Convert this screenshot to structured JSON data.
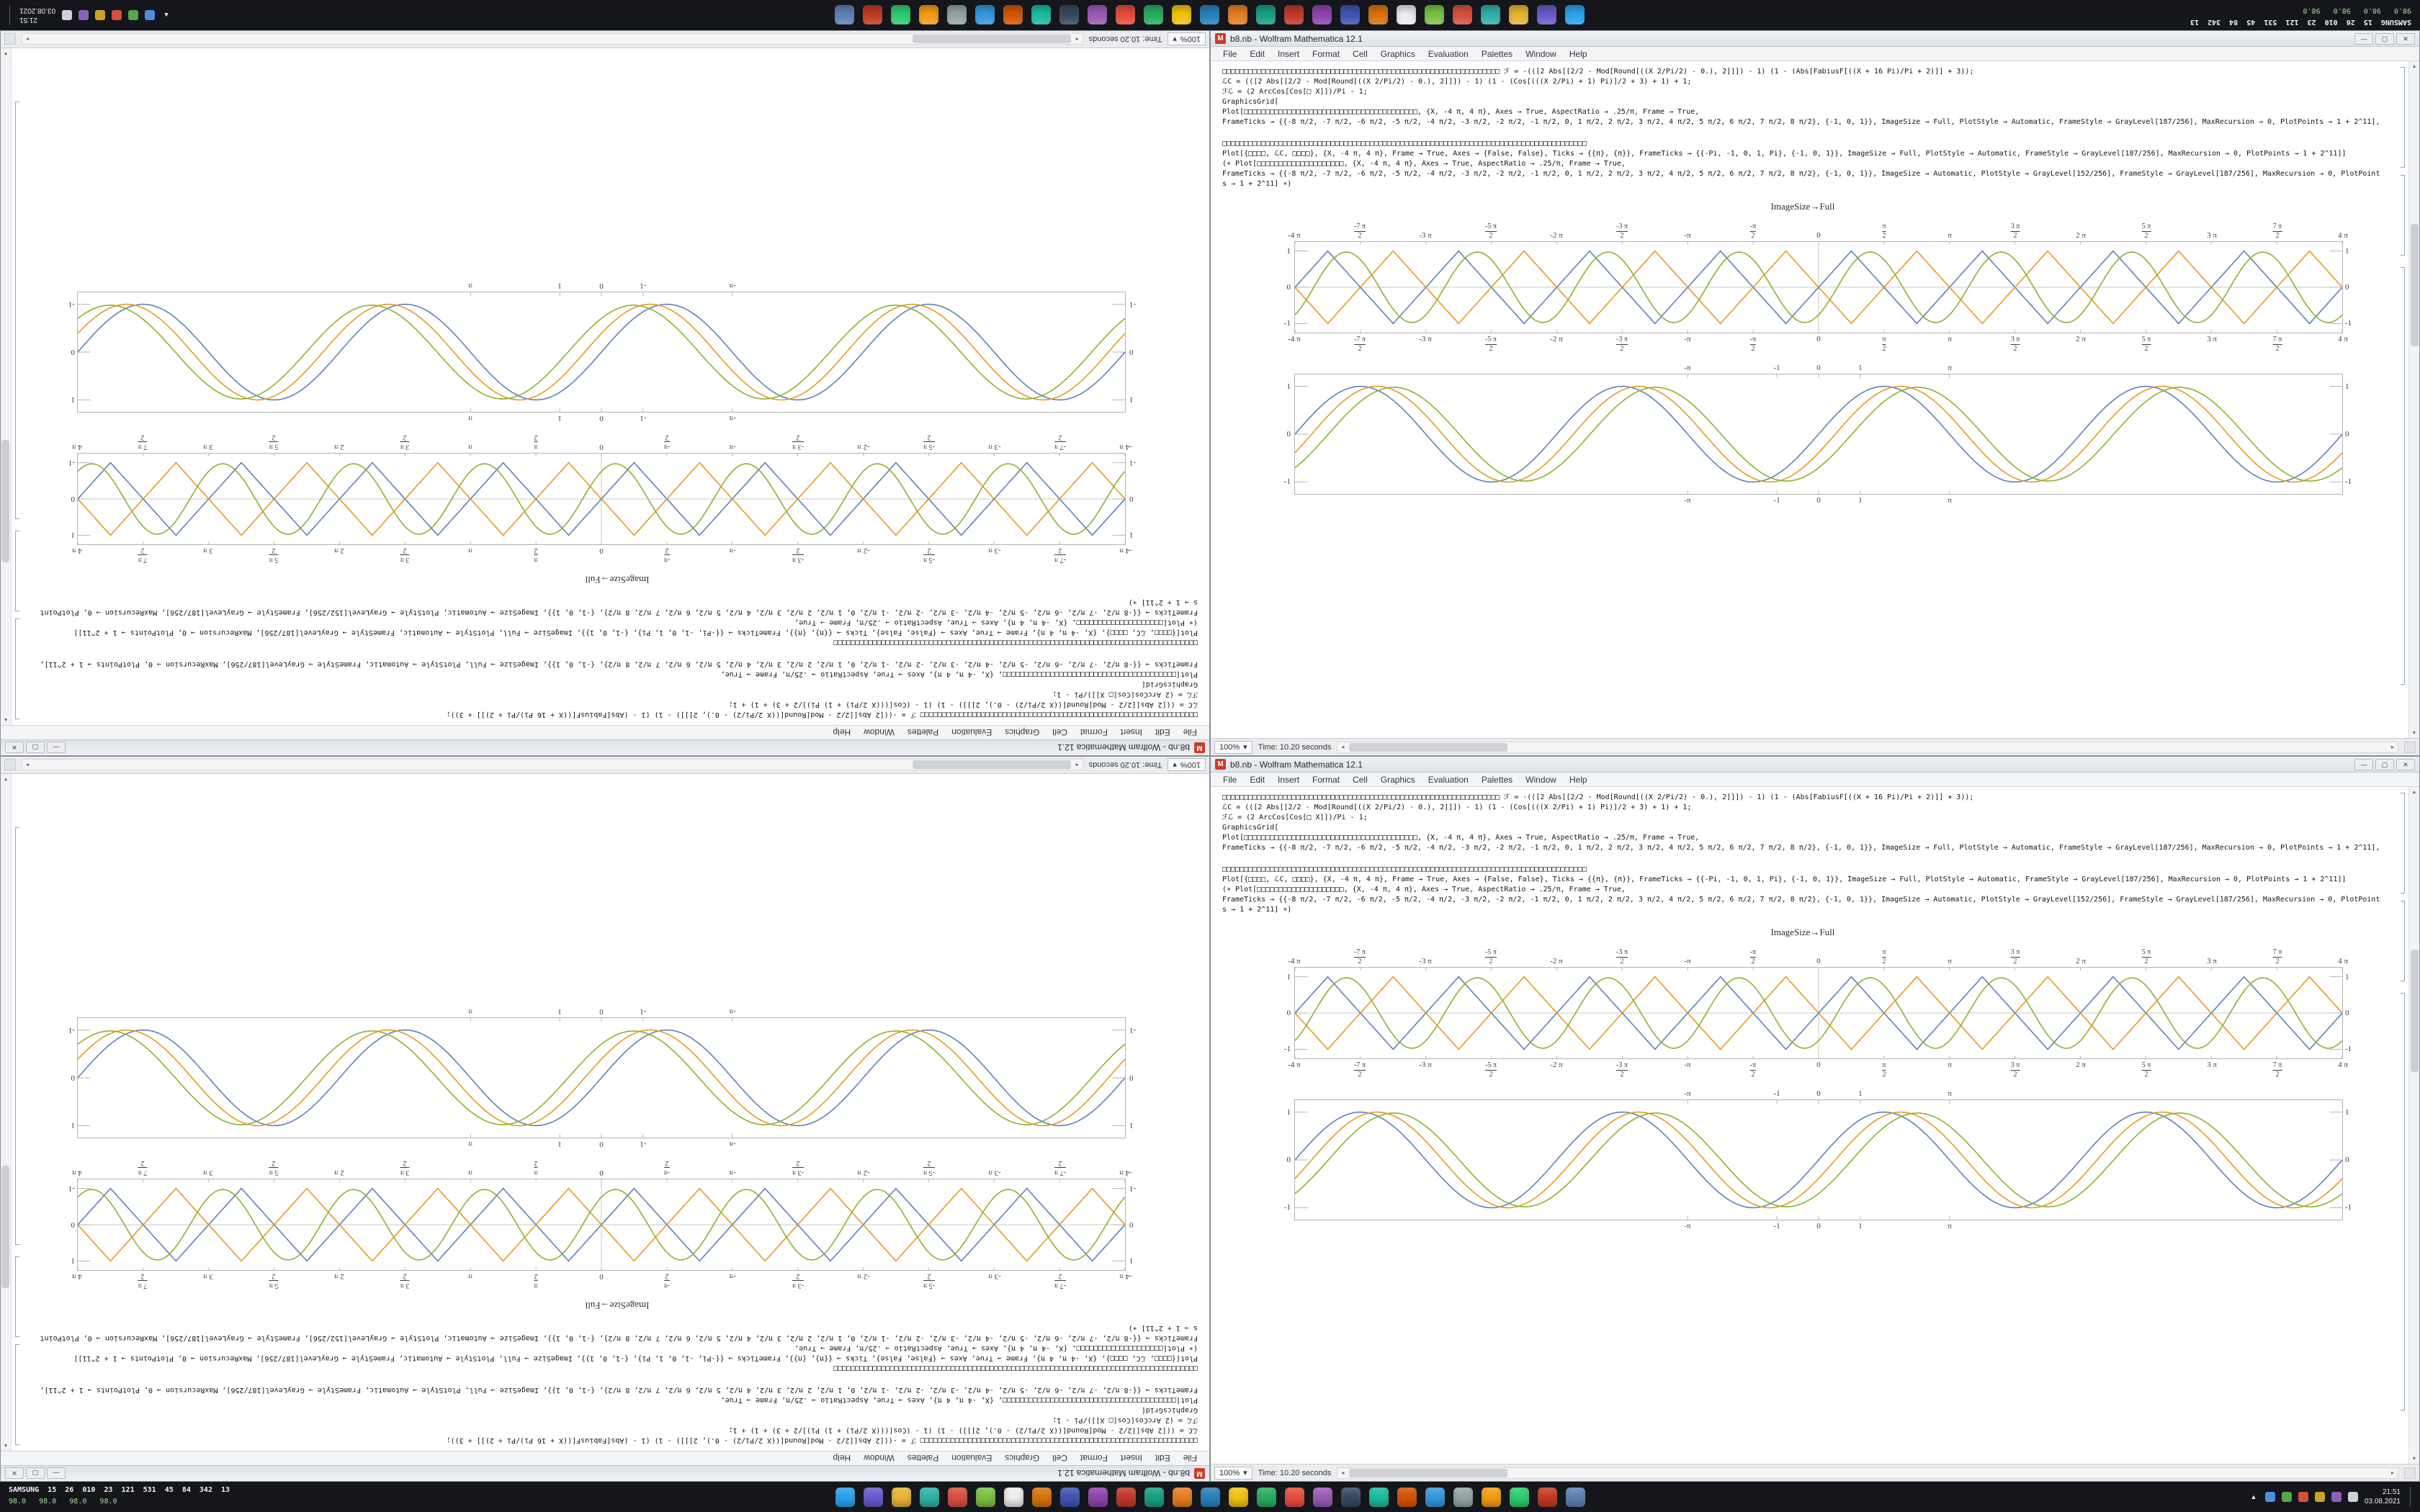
{
  "meta": {
    "status_time": "Time: 10.20 seconds",
    "zoom": "100%",
    "zoom_caret": "▾"
  },
  "window": {
    "icon_label": "M",
    "title": "b8.nb - Wolfram Mathematica 12.1",
    "controls": {
      "minimize": "—",
      "maximize": "▢",
      "close": "✕"
    },
    "menus": [
      "File",
      "Edit",
      "Insert",
      "Format",
      "Cell",
      "Graphics",
      "Evaluation",
      "Palettes",
      "Window",
      "Help"
    ],
    "code_cell_1": [
      "□□□□□□□□□□□□□□□□□□□□□□□□□□□□□□□□□□□□□□□□□□□□□□□□□□□□□□□□□□□□□□□□ ℱ = -(([2 Abs[[2/2 - Mod[Round[((X 2/Pi/2) - 0.), 2]]]) - 1) (1 - (Abs[FabiusF[((X + 16 Pi)/Pi + 2)]] + 3));",
      "ℒC = (([2 Abs[[2/2 - Mod[Round[((X 2/Pi/2) - 0.), 2]]]) - 1) (1 - (Cos[(((X 2/Pi) + 1) Pi)]/2 + 3) + 1) + 1;",
      "ℱℒ = (2 ArcCos[Cos[□ X]])/Pi - 1;",
      "GraphicsGrid[",
      "Plot[□□□□□□□□□□□□□□□□□□□□□□□□□□□□□□□□□□□□□□□□, {X, -4 π, 4 π}, Axes → True, AspectRatio → .25/π, Frame → True,",
      "FrameTicks → {{-8 π/2, -7 π/2, -6 π/2, -5 π/2, -4 π/2, -3 π/2, -2 π/2, -1 π/2, 0, 1 π/2, 2 π/2, 3 π/2, 4 π/2, 5 π/2, 6 π/2, 7 π/2, 8 π/2}, {-1, 0, 1}}, ImageSize → Full, PlotStyle → Automatic, FrameStyle → GrayLevel[187/256], MaxRecursion → 0, PlotPoints → 1 + 2^11],"
    ],
    "code_cell_2": [
      "□□□□□□□□□□□□□□□□□□□□□□□□□□□□□□□□□□□□□□□□□□□□□□□□□□□□□□□□□□□□□□□□□□□□□□□□□□□□□□□□□□□□",
      "Plot[{□□□□, ℒC, □□□□}, {X, -4 π, 4 π}, Frame → True, Axes → {False, False}, Ticks → {{π}, {π}}, FrameTicks → {{-Pi, -1, 0, 1, Pi}, {-1, 0, 1}}, ImageSize → Full, PlotStyle → Automatic, FrameStyle → GrayLevel[187/256], MaxRecursion → 0, PlotPoints → 1 + 2^11]]",
      "(∗ Plot[□□□□□□□□□□□□□□□□□□□□, {X, -4 π, 4 π}, Axes → True, AspectRatio → .25/π, Frame → True,",
      "FrameTicks → {{-8 π/2, -7 π/2, -6 π/2, -5 π/2, -4 π/2, -3 π/2, -2 π/2, -1 π/2, 0, 1 π/2, 2 π/2, 3 π/2, 4 π/2, 5 π/2, 6 π/2, 7 π/2, 8 π/2}, {-1, 0, 1}}, ImageSize → Automatic, PlotStyle → GrayLevel[152/256], FrameStyle → GrayLevel[187/256], MaxRecursion → 0, PlotPoints → 1 + 2^11] ∗)"
    ],
    "output_label": "ImageSize→Full"
  },
  "chart_data": [
    {
      "type": "line",
      "title": "",
      "xlabel": "",
      "ylabel": "",
      "x_range": [
        -12.566,
        12.566
      ],
      "y_range": [
        -1.25,
        1.25
      ],
      "frame": true,
      "axes": true,
      "grid": false,
      "legend": "none",
      "x_ticks": [
        {
          "v": -12.566,
          "l": "-4 π"
        },
        {
          "v": -10.996,
          "n": "-7 π",
          "d": "2"
        },
        {
          "v": -9.4248,
          "l": "-3 π"
        },
        {
          "v": -7.854,
          "n": "-5 π",
          "d": "2"
        },
        {
          "v": -6.2832,
          "l": "-2 π"
        },
        {
          "v": -4.7124,
          "n": "-3 π",
          "d": "2"
        },
        {
          "v": -3.1416,
          "l": "-π"
        },
        {
          "v": -1.5708,
          "n": "-π",
          "d": "2"
        },
        {
          "v": 0,
          "l": "0"
        },
        {
          "v": 1.5708,
          "n": "π",
          "d": "2"
        },
        {
          "v": 3.1416,
          "l": "π"
        },
        {
          "v": 4.7124,
          "n": "3 π",
          "d": "2"
        },
        {
          "v": 6.2832,
          "l": "2 π"
        },
        {
          "v": 7.854,
          "n": "5 π",
          "d": "2"
        },
        {
          "v": 9.4248,
          "l": "3 π"
        },
        {
          "v": 10.996,
          "n": "7 π",
          "d": "2"
        },
        {
          "v": 12.566,
          "l": "4 π"
        }
      ],
      "y_ticks": [
        -1,
        0,
        1
      ],
      "series": [
        {
          "name": "triangle-wave-1",
          "fn": "tri",
          "period": 3.1416,
          "phase": 0,
          "amp": 1,
          "color": "#5e81b5"
        },
        {
          "name": "triangle-wave-2",
          "fn": "tri",
          "period": 3.1416,
          "phase": 1.5708,
          "amp": 1,
          "color": "#e19c24"
        },
        {
          "name": "sine-wave",
          "fn": "sin",
          "period": 3.1416,
          "phase": 0.45,
          "amp": 0.97,
          "color": "#8fb032"
        }
      ]
    },
    {
      "type": "line",
      "title": "",
      "xlabel": "",
      "ylabel": "",
      "x_range": [
        -12.566,
        12.566
      ],
      "y_range": [
        -1.25,
        1.25
      ],
      "frame": true,
      "axes": false,
      "grid": false,
      "legend": "none",
      "x_ticks": [
        {
          "v": -3.1416,
          "l": "-π"
        },
        {
          "v": -1,
          "l": "-1"
        },
        {
          "v": 0,
          "l": "0"
        },
        {
          "v": 1,
          "l": "1"
        },
        {
          "v": 3.1416,
          "l": "π"
        }
      ],
      "y_ticks": [
        -1,
        0,
        1
      ],
      "series": [
        {
          "name": "sine-1",
          "fn": "sin",
          "period": 6.2832,
          "phase": 0,
          "amp": 1,
          "color": "#5e81b5"
        },
        {
          "name": "sine-2",
          "fn": "sin",
          "period": 6.2832,
          "phase": 0.4,
          "amp": 1,
          "color": "#e19c24"
        },
        {
          "name": "sine-3",
          "fn": "sin",
          "period": 6.2832,
          "phase": 0.8,
          "amp": 0.98,
          "color": "#8fb032"
        }
      ]
    }
  ],
  "taskbar": {
    "stats_line_1": "SAMSUNG  15  26  010  23  121  531  45  84  342  13",
    "stats_line_2": "98.0   98.0   98.0   98.0",
    "app_icons": [
      {
        "name": "taskbar-app-icon",
        "color": "#2aa3ef"
      },
      {
        "name": "taskbar-app-icon",
        "color": "#6a5acd"
      },
      {
        "name": "taskbar-app-icon",
        "color": "#e8b531"
      },
      {
        "name": "taskbar-app-icon",
        "color": "#2fb2a8"
      },
      {
        "name": "taskbar-app-icon",
        "color": "#d94f3d"
      },
      {
        "name": "taskbar-app-icon",
        "color": "#7ac143"
      },
      {
        "name": "taskbar-app-icon",
        "color": "#ececec"
      },
      {
        "name": "taskbar-app-icon",
        "color": "#d9730d"
      },
      {
        "name": "taskbar-app-icon",
        "color": "#4053b3"
      },
      {
        "name": "taskbar-app-icon",
        "color": "#8e44ad"
      },
      {
        "name": "taskbar-app-icon",
        "color": "#c0392b"
      },
      {
        "name": "taskbar-app-icon",
        "color": "#16a085"
      },
      {
        "name": "taskbar-app-icon",
        "color": "#e67e22"
      },
      {
        "name": "taskbar-app-icon",
        "color": "#2980b9"
      },
      {
        "name": "taskbar-app-icon",
        "color": "#f1c40f"
      },
      {
        "name": "taskbar-app-icon",
        "color": "#27ae60"
      },
      {
        "name": "taskbar-app-icon",
        "color": "#e74c3c"
      },
      {
        "name": "taskbar-app-icon",
        "color": "#9b59b6"
      },
      {
        "name": "taskbar-app-icon",
        "color": "#34495e"
      },
      {
        "name": "taskbar-app-icon",
        "color": "#1abc9c"
      },
      {
        "name": "taskbar-app-icon",
        "color": "#d35400"
      },
      {
        "name": "taskbar-app-icon",
        "color": "#3498db"
      },
      {
        "name": "taskbar-app-icon",
        "color": "#95a5a6"
      },
      {
        "name": "taskbar-app-icon",
        "color": "#f39c12"
      },
      {
        "name": "taskbar-app-icon",
        "color": "#2ecc71"
      },
      {
        "name": "taskbar-app-icon",
        "color": "#c23b22"
      },
      {
        "name": "taskbar-app-icon",
        "color": "#5e81b5"
      }
    ],
    "tray_icons": [
      {
        "name": "tray-chevron-icon",
        "glyph": "▲",
        "color": "transparent"
      },
      {
        "name": "tray-icon",
        "glyph": "",
        "color": "#4a90d9"
      },
      {
        "name": "tray-icon",
        "glyph": "",
        "color": "#57a64a"
      },
      {
        "name": "tray-icon",
        "glyph": "",
        "color": "#d94f3d"
      },
      {
        "name": "tray-icon",
        "glyph": "",
        "color": "#c9a227"
      },
      {
        "name": "tray-icon",
        "glyph": "",
        "color": "#8a62b3"
      },
      {
        "name": "tray-icon",
        "glyph": "",
        "color": "#cfd3d8"
      }
    ],
    "clock_time": "21:51",
    "clock_date": "03.08.2021"
  }
}
